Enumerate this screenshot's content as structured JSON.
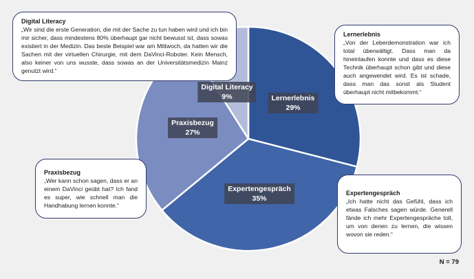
{
  "chart_data": {
    "type": "pie",
    "title": "",
    "start_angle_deg": 0,
    "direction": "clockwise",
    "categories": [
      "Lernerlebnis",
      "Expertengespräch",
      "Praxisbezug",
      "Digital Literacy"
    ],
    "values": [
      29,
      35,
      27,
      9
    ],
    "unit": "%",
    "colors": [
      "#2f5597",
      "#4065a8",
      "#7a8cc0",
      "#b4bcdc"
    ],
    "labels": [
      {
        "name": "Lernerlebnis",
        "value": "29%"
      },
      {
        "name": "Expertengespräch",
        "value": "35%"
      },
      {
        "name": "Praxisbezug",
        "value": "27%"
      },
      {
        "name": "Digital Literacy",
        "value": "9%"
      }
    ],
    "sample_size": "N = 79",
    "legend": "none"
  },
  "quotes": {
    "digital_literacy": {
      "title": "Digital Literacy",
      "text": "„Wir sind die erste Generation, die mit der Sache zu tun haben wird und ich bin mir sicher, dass mindestens 80% überhaupt gar nicht bewusst ist, dass sowas existiert in der Medizin. Das beste Beispiel war am Mittwoch, da hatten wir die Sachen mit der virtuellen Chirurgie, mit dem DaVinci-Roboter. Kein Mensch, also keiner von uns wusste, dass sowas an der Universitätsmedizin Mainz genutzt wird.“"
    },
    "lernerlebnis": {
      "title": "Lernerlebnis",
      "text": "„Von der Leberdemonstration war ich total überwältigt. Dass man da hineinlaufen konnte und dass es diese Technik überhaupt schon gibt und diese auch angewendet wird. Es ist schade, dass man das sonst als Student überhaupt nicht mitbekommt.“"
    },
    "praxisbezug": {
      "title": "Praxisbezug",
      "text": "„Wer kann schon sagen, dass er an einem DaVinci geübt hat? Ich fand es super, wie schnell man die Handhabung lernen konnte.“"
    },
    "expertengespraech": {
      "title": "Expertengespräch",
      "text": "„Ich hatte nicht das Gefühl, dass ich etwas Falsches sagen würde. Generell fände ich mehr Expertengespräche toll, um von denen zu lernen, die wissen wovon sie reden.“"
    }
  },
  "footer": {
    "n_label": "N = 79"
  }
}
